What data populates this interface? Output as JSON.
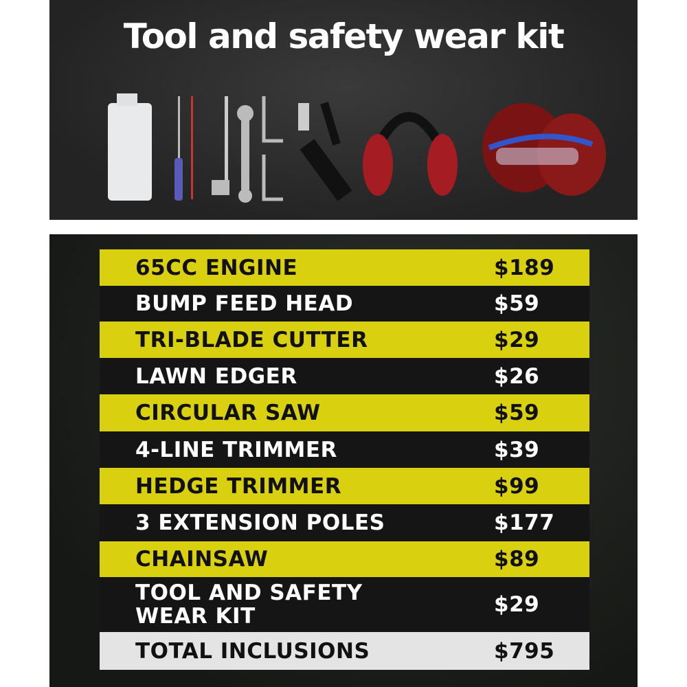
{
  "title": "Tool and safety wear kit",
  "kit_items": [
    "oil-bottle-icon",
    "screwdriver-icon",
    "file-icon",
    "spark-plug-wrench-icon",
    "spanner-icon",
    "hex-key-icon",
    "shoulder-strap-icon",
    "ear-muffs-icon",
    "safety-glasses-gloves-icon"
  ],
  "colors": {
    "yellow": "#d9d10f",
    "dark": "#151515",
    "total": "#e4e4e4"
  },
  "rows": [
    {
      "label": "65CC ENGINE",
      "price": "$189"
    },
    {
      "label": "BUMP FEED HEAD",
      "price": "$59"
    },
    {
      "label": "TRI-BLADE CUTTER",
      "price": "$29"
    },
    {
      "label": "LAWN EDGER",
      "price": "$26"
    },
    {
      "label": "CIRCULAR SAW",
      "price": "$59"
    },
    {
      "label": "4-LINE TRIMMER",
      "price": "$39"
    },
    {
      "label": "HEDGE TRIMMER",
      "price": "$99"
    },
    {
      "label": "3 EXTENSION POLES",
      "price": "$177"
    },
    {
      "label": "CHAINSAW",
      "price": "$89"
    },
    {
      "label": "TOOL AND SAFETY WEAR KIT",
      "price": "$29"
    }
  ],
  "total": {
    "label": "TOTAL INCLUSIONS",
    "price": "$795"
  }
}
